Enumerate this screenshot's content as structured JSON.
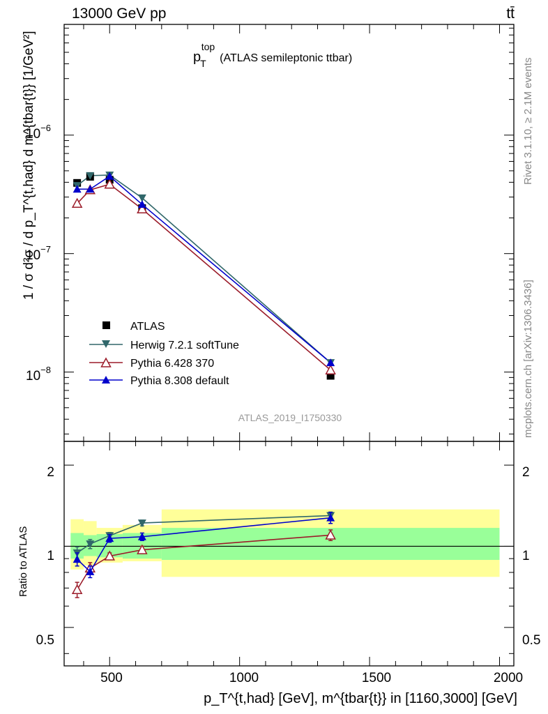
{
  "header": {
    "left": "13000 GeV pp",
    "right": "tt̄"
  },
  "side_labels": {
    "rivet": "Rivet 3.1.10, ≥ 2.1M events",
    "mcplots": "mcplots.cern.ch [arXiv:1306.3436]"
  },
  "main_panel": {
    "title_main": "p",
    "title_sup": "top",
    "title_sub": "T",
    "title_rest": "(ATLAS semileptonic ttbar)",
    "analysis_id": "ATLAS_2019_I1750330",
    "ylabel": "1 / σ d²σ / d p_T^{t,had} d m^{tbar{t}} [1/GeV²]",
    "ytick_labels": [
      "10",
      "10",
      "10"
    ],
    "ytick_exponents": [
      "−6",
      "−7",
      "−8"
    ]
  },
  "ratio_panel": {
    "ylabel": "Ratio to ATLAS",
    "ytick_labels": [
      "2",
      "1",
      "0.5"
    ]
  },
  "xaxis": {
    "tick_labels": [
      "500",
      "1000",
      "1500",
      "2000"
    ],
    "label": "p_T^{t,had} [GeV], m^{tbar{t}} in [1160,3000] [GeV]"
  },
  "legend": [
    "ATLAS",
    "Herwig 7.2.1 softTune",
    "Pythia 6.428 370",
    "Pythia 8.308 default"
  ],
  "chart_data": {
    "type": "line",
    "x_range": [
      325,
      2055
    ],
    "main": {
      "yscale": "log",
      "ylim": [
        2.6e-09,
        8.6e-06
      ],
      "ticks": [
        1e-06,
        1e-07,
        1e-08
      ]
    },
    "ratio": {
      "yscale": "log",
      "ylim": [
        0.36,
        2.45
      ],
      "ticks": [
        2,
        1,
        0.5
      ],
      "reference_line": 1
    },
    "bins": [
      {
        "x": 375,
        "lo": 350,
        "hi": 400
      },
      {
        "x": 425,
        "lo": 400,
        "hi": 450
      },
      {
        "x": 500,
        "lo": 450,
        "hi": 550
      },
      {
        "x": 625,
        "lo": 550,
        "hi": 700
      },
      {
        "x": 1350,
        "lo": 700,
        "hi": 2000
      }
    ],
    "band_inner": [
      [
        0.9,
        1.12
      ],
      [
        0.92,
        1.1
      ],
      [
        0.91,
        1.11
      ],
      [
        0.9,
        1.12
      ],
      [
        0.89,
        1.17
      ]
    ],
    "band_outer": [
      [
        0.82,
        1.26
      ],
      [
        0.85,
        1.24
      ],
      [
        0.87,
        1.17
      ],
      [
        0.88,
        1.2
      ],
      [
        0.77,
        1.37
      ]
    ],
    "series": [
      {
        "name": "ATLAS",
        "color": "#000000",
        "marker": "square",
        "x": [
          375,
          425,
          500,
          625,
          1350
        ],
        "y": [
          3.95e-07,
          4.45e-07,
          4.2e-07,
          2.42e-07,
          9.3e-09
        ]
      },
      {
        "name": "Herwig 7.2.1 softTune",
        "color": "#30676a",
        "marker": "triangle-down",
        "x": [
          375,
          425,
          500,
          625,
          1350
        ],
        "y": [
          3.75e-07,
          4.55e-07,
          4.6e-07,
          2.95e-07,
          1.2e-08
        ],
        "ratio": [
          0.945,
          1.02,
          1.095,
          1.22,
          1.3
        ],
        "ratio_err": [
          0.05,
          0.04,
          0.03,
          0.03,
          0.04
        ]
      },
      {
        "name": "Pythia 6.428 370",
        "color": "#9b1c2a",
        "marker": "triangle-open",
        "x": [
          375,
          425,
          500,
          625,
          1350
        ],
        "y": [
          2.65e-07,
          3.45e-07,
          3.85e-07,
          2.38e-07,
          1.04e-08
        ],
        "ratio": [
          0.69,
          0.83,
          0.92,
          0.97,
          1.1
        ],
        "ratio_err": [
          0.045,
          0.04,
          0.025,
          0.03,
          0.05
        ]
      },
      {
        "name": "Pythia 8.308 default",
        "color": "#0000cc",
        "marker": "triangle-up",
        "x": [
          375,
          425,
          500,
          625,
          1350
        ],
        "y": [
          3.5e-07,
          3.5e-07,
          4.5e-07,
          2.6e-07,
          1.2e-08
        ],
        "ratio": [
          0.895,
          0.805,
          1.07,
          1.085,
          1.275
        ],
        "ratio_err": [
          0.05,
          0.04,
          0.035,
          0.035,
          0.06
        ]
      }
    ]
  }
}
